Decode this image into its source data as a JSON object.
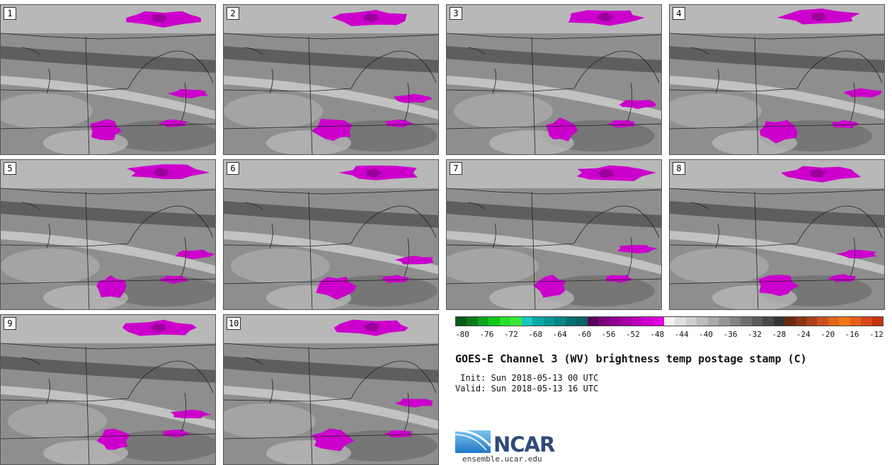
{
  "panels": [
    "1",
    "2",
    "3",
    "4",
    "5",
    "6",
    "7",
    "8",
    "9",
    "10"
  ],
  "colorbar": {
    "colors": [
      "#0b5a16",
      "#0c7a1a",
      "#0ea51c",
      "#12c81a",
      "#28e028",
      "#3ee63a",
      "#14c8c0",
      "#0aa8a8",
      "#0a9696",
      "#088484",
      "#067070",
      "#066464",
      "#5a005a",
      "#7a007a",
      "#900090",
      "#a400a4",
      "#b800b8",
      "#cc00cc",
      "#e000e0",
      "#f2f2f2",
      "#e0e0e0",
      "#cecece",
      "#bcbcbc",
      "#a8a8a8",
      "#969696",
      "#848484",
      "#707070",
      "#5c5c5c",
      "#484848",
      "#343434",
      "#6a2a10",
      "#8a3414",
      "#a84018",
      "#c8501c",
      "#e06418",
      "#f07818",
      "#e86018",
      "#d84818",
      "#c83010"
    ],
    "ticks": [
      "-80",
      "-76",
      "-72",
      "-68",
      "-64",
      "-60",
      "-56",
      "-52",
      "-48",
      "-44",
      "-40",
      "-36",
      "-32",
      "-28",
      "-24",
      "-20",
      "-16",
      "-12"
    ]
  },
  "title": "GOES-E Channel 3 (WV) brightness temp postage stamp (C)",
  "init": " Init: Sun 2018-05-13 00 UTC",
  "valid": "Valid: Sun 2018-05-13 16 UTC",
  "logo": {
    "name": "NCAR",
    "url": "ensemble.ucar.edu"
  }
}
